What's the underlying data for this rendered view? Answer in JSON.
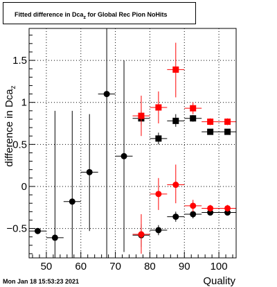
{
  "chart_data": {
    "type": "scatter",
    "title": "Fitted difference in Dca",
    "title_sub": "z",
    "title_suffix": " for Global Rec Pion NoHits",
    "xlabel": "Quality",
    "ylabel": "difference in Dca",
    "ylabel_sub": "z",
    "xlim": [
      45,
      105
    ],
    "ylim": [
      -0.85,
      1.88
    ],
    "x_ticks": [
      50,
      60,
      70,
      80,
      90,
      100
    ],
    "y_ticks": [
      -0.5,
      0,
      0.5,
      1,
      1.5
    ],
    "y_tick_labels": [
      "−0.5",
      "0",
      "0.5",
      "1",
      "1.5"
    ],
    "grid": true,
    "series": [
      {
        "marker": "circle",
        "color": "#000000",
        "points": [
          {
            "x": 47.5,
            "y": -0.53,
            "xerr": 2.5,
            "ylo": -0.53,
            "yhi": -0.53
          },
          {
            "x": 52.5,
            "y": -0.61,
            "xerr": 2.5,
            "ylo": -0.85,
            "yhi": 0.9
          },
          {
            "x": 57.5,
            "y": -0.18,
            "xerr": 2.5,
            "ylo": -0.85,
            "yhi": 0.9
          },
          {
            "x": 62.5,
            "y": 0.17,
            "xerr": 2.5,
            "ylo": -0.53,
            "yhi": 0.86
          },
          {
            "x": 67.5,
            "y": 1.1,
            "xerr": 2.5,
            "ylo": -0.85,
            "yhi": 1.88
          },
          {
            "x": 72.5,
            "y": 0.36,
            "xerr": 2.5,
            "ylo": -0.78,
            "yhi": 1.5
          },
          {
            "x": 77.5,
            "y": -0.58,
            "xerr": 2.5,
            "ylo": -0.72,
            "yhi": -0.45
          },
          {
            "x": 82.5,
            "y": -0.52,
            "xerr": 2.5,
            "ylo": -0.58,
            "yhi": -0.46
          },
          {
            "x": 87.5,
            "y": -0.36,
            "xerr": 2.5,
            "ylo": -0.42,
            "yhi": -0.3
          },
          {
            "x": 92.5,
            "y": -0.33,
            "xerr": 2.5,
            "ylo": -0.38,
            "yhi": -0.29
          },
          {
            "x": 97.5,
            "y": -0.31,
            "xerr": 2.5,
            "ylo": -0.34,
            "yhi": -0.28
          },
          {
            "x": 102.5,
            "y": -0.31,
            "xerr": 2.5,
            "ylo": -0.34,
            "yhi": -0.28
          }
        ]
      },
      {
        "marker": "circle",
        "color": "#ff0000",
        "points": [
          {
            "x": 77.5,
            "y": -0.57,
            "xerr": 2.5,
            "ylo": -0.8,
            "yhi": -0.33
          },
          {
            "x": 82.5,
            "y": -0.09,
            "xerr": 2.5,
            "ylo": -0.28,
            "yhi": 0.1
          },
          {
            "x": 87.5,
            "y": 0.02,
            "xerr": 2.5,
            "ylo": -0.2,
            "yhi": 0.26
          },
          {
            "x": 92.5,
            "y": -0.23,
            "xerr": 2.5,
            "ylo": -0.3,
            "yhi": -0.16
          },
          {
            "x": 97.5,
            "y": -0.26,
            "xerr": 2.5,
            "ylo": -0.3,
            "yhi": -0.22
          },
          {
            "x": 102.5,
            "y": -0.26,
            "xerr": 2.5,
            "ylo": -0.3,
            "yhi": -0.22
          }
        ]
      },
      {
        "marker": "square",
        "color": "#000000",
        "points": [
          {
            "x": 77.5,
            "y": 0.81,
            "xerr": 2.5,
            "ylo": 0.73,
            "yhi": 0.89
          },
          {
            "x": 82.5,
            "y": 0.57,
            "xerr": 2.5,
            "ylo": 0.5,
            "yhi": 0.64
          },
          {
            "x": 87.5,
            "y": 0.78,
            "xerr": 2.5,
            "ylo": 0.71,
            "yhi": 0.86
          },
          {
            "x": 92.5,
            "y": 0.81,
            "xerr": 2.5,
            "ylo": 0.77,
            "yhi": 0.85
          },
          {
            "x": 97.5,
            "y": 0.65,
            "xerr": 2.5,
            "ylo": 0.62,
            "yhi": 0.68
          },
          {
            "x": 102.5,
            "y": 0.65,
            "xerr": 2.5,
            "ylo": 0.62,
            "yhi": 0.68
          }
        ]
      },
      {
        "marker": "square",
        "color": "#ff0000",
        "points": [
          {
            "x": 77.5,
            "y": 0.84,
            "xerr": 2.5,
            "ylo": 0.6,
            "yhi": 1.08
          },
          {
            "x": 82.5,
            "y": 0.94,
            "xerr": 2.5,
            "ylo": 0.75,
            "yhi": 1.13
          },
          {
            "x": 87.5,
            "y": 1.39,
            "xerr": 2.5,
            "ylo": 1.06,
            "yhi": 1.71
          },
          {
            "x": 92.5,
            "y": 0.93,
            "xerr": 2.5,
            "ylo": 0.86,
            "yhi": 1.0
          },
          {
            "x": 97.5,
            "y": 0.77,
            "xerr": 2.5,
            "ylo": 0.73,
            "yhi": 0.81
          },
          {
            "x": 102.5,
            "y": 0.77,
            "xerr": 2.5,
            "ylo": 0.73,
            "yhi": 0.81
          }
        ]
      }
    ]
  },
  "timestamp": "Mon Jan 18 15:53:23 2021"
}
